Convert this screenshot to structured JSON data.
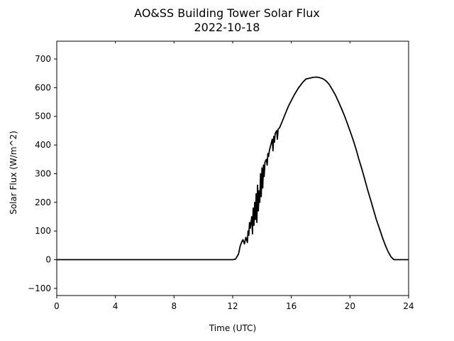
{
  "chart_data": {
    "type": "line",
    "title": "AO&SS Building Tower Solar Flux",
    "subtitle": "2022-10-18",
    "xlabel": "Time (UTC)",
    "ylabel": "Solar Flux (W/m^2)",
    "xlim": [
      0,
      24
    ],
    "ylim": [
      -125,
      762
    ],
    "xticks": [
      0,
      4,
      8,
      12,
      16,
      20,
      24
    ],
    "yticks": [
      -100,
      0,
      100,
      200,
      300,
      400,
      500,
      600,
      700
    ],
    "grid": false,
    "legend": "none",
    "line_color": "#000000",
    "series": [
      {
        "x": [
          0,
          4,
          8,
          12,
          12.2,
          12.4,
          12.5,
          12.6,
          12.7,
          12.8,
          12.9,
          13.0,
          13.05,
          13.1,
          13.15,
          13.2,
          13.3,
          13.35,
          13.4,
          13.45,
          13.5,
          13.55,
          13.6,
          13.65,
          13.7,
          13.75,
          13.8,
          13.85,
          13.9,
          13.95,
          14.0,
          14.05,
          14.1,
          14.15,
          14.2,
          14.3,
          14.35,
          14.4,
          14.45,
          14.5,
          14.6,
          14.7,
          14.75,
          14.8,
          14.85,
          14.9,
          15.0,
          15.05,
          15.1,
          15.2,
          15.4,
          15.6,
          15.8,
          16.0,
          16.2,
          16.5,
          16.8,
          17.0,
          17.3,
          17.5,
          17.7,
          17.85,
          18.0,
          18.2,
          18.4,
          18.6,
          18.8,
          19.0,
          19.2,
          19.4,
          19.6,
          19.8,
          20.0,
          20.2,
          20.4,
          20.6,
          20.8,
          21.0,
          21.2,
          21.4,
          21.6,
          21.8,
          22.0,
          22.2,
          22.4,
          22.6,
          22.8,
          23.0,
          23.1,
          23.2,
          23.3,
          24
        ],
        "y": [
          0,
          0,
          0,
          0,
          2,
          20,
          45,
          60,
          70,
          55,
          78,
          60,
          100,
          85,
          130,
          110,
          150,
          90,
          180,
          120,
          200,
          140,
          230,
          130,
          260,
          170,
          240,
          200,
          300,
          220,
          320,
          250,
          330,
          290,
          340,
          350,
          330,
          370,
          360,
          380,
          400,
          420,
          380,
          430,
          410,
          440,
          450,
          420,
          455,
          460,
          485,
          510,
          535,
          555,
          575,
          600,
          620,
          630,
          634,
          636,
          637,
          636,
          634,
          630,
          622,
          610,
          593,
          575,
          553,
          530,
          505,
          478,
          450,
          420,
          388,
          352,
          318,
          282,
          245,
          210,
          175,
          140,
          110,
          80,
          52,
          28,
          10,
          0,
          0,
          0,
          0,
          0
        ]
      }
    ]
  }
}
